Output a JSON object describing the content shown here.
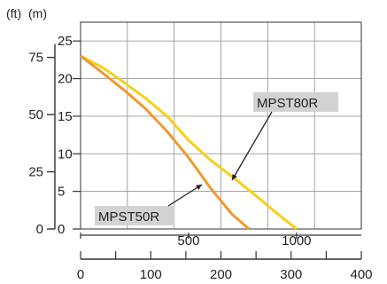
{
  "chart_data": {
    "type": "line",
    "xlabel": "",
    "ylabel": "",
    "x_axes": [
      {
        "ticks": [
          500,
          1000
        ],
        "tick_labels": [
          "500",
          "1000"
        ],
        "range": [
          0,
          1300
        ]
      },
      {
        "ticks": [
          0,
          100,
          200,
          300,
          400
        ],
        "tick_labels": [
          "0",
          "100",
          "200",
          "300",
          "400"
        ],
        "range": [
          0,
          400
        ]
      }
    ],
    "y_axes": [
      {
        "unit_label": "(m)",
        "ticks": [
          0,
          5,
          10,
          15,
          20,
          25
        ],
        "tick_labels": [
          "0",
          "5",
          "10",
          "15",
          "20",
          "25"
        ],
        "range": [
          0,
          27.5
        ]
      },
      {
        "unit_label": "(ft)",
        "ticks": [
          0,
          25,
          50,
          75
        ],
        "tick_labels": [
          "0",
          "25",
          "50",
          "75"
        ],
        "range": [
          0,
          90
        ]
      }
    ],
    "grid": true,
    "series": [
      {
        "name": "MPST80R",
        "color": "#f5d01a",
        "x": [
          0,
          100,
          200,
          300,
          400,
          500,
          600,
          700,
          800,
          900,
          1000
        ],
        "y": [
          23,
          21.5,
          19.5,
          17.4,
          15.0,
          11.8,
          9.2,
          7.0,
          4.7,
          2.3,
          0
        ]
      },
      {
        "name": "MPST50R",
        "color": "#ef9a2e",
        "x": [
          0,
          100,
          200,
          300,
          400,
          500,
          600,
          700,
          780
        ],
        "y": [
          23,
          20.8,
          18.5,
          16.0,
          13.0,
          9.5,
          5.5,
          2.0,
          0
        ]
      }
    ],
    "annotations": [
      {
        "text": "MPST80R",
        "points_to_series": "MPST80R"
      },
      {
        "text": "MPST50R",
        "points_to_series": "MPST50R"
      }
    ]
  }
}
